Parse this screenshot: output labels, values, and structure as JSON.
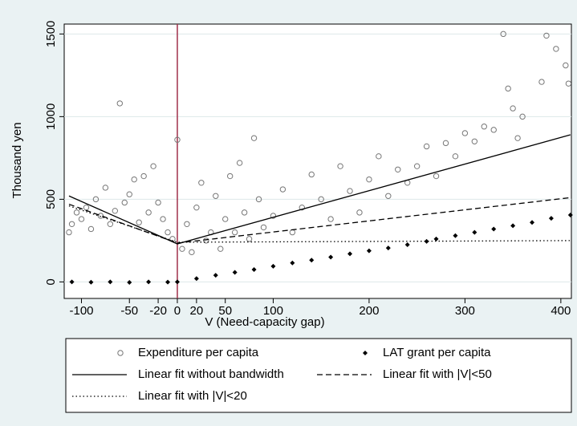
{
  "chart_data": {
    "type": "scatter",
    "xlabel": "V (Need-capacity gap)",
    "ylabel": "Thousand yen",
    "xlim": [
      -118,
      411
    ],
    "ylim": [
      -100,
      1560
    ],
    "xticks": [
      -100,
      -50,
      -20,
      0,
      20,
      50,
      100,
      200,
      300,
      400
    ],
    "yticks": [
      0,
      500,
      1000,
      1500
    ],
    "grid": true,
    "vline": 0,
    "vline_color": "#a0304a",
    "series": [
      {
        "name": "Expenditure per capita",
        "kind": "points",
        "marker": "circle",
        "color": "#777777",
        "x": [
          -113,
          -110,
          -105,
          -100,
          -95,
          -90,
          -85,
          -80,
          -75,
          -70,
          -65,
          -60,
          -55,
          -50,
          -45,
          -40,
          -35,
          -30,
          -25,
          -20,
          -15,
          -10,
          -5,
          0,
          5,
          10,
          15,
          20,
          25,
          30,
          35,
          40,
          45,
          50,
          55,
          60,
          65,
          70,
          75,
          80,
          85,
          90,
          100,
          110,
          120,
          130,
          140,
          150,
          160,
          170,
          180,
          190,
          200,
          210,
          220,
          230,
          240,
          250,
          260,
          270,
          280,
          290,
          300,
          310,
          320,
          330,
          340,
          345,
          350,
          355,
          360,
          380,
          385,
          395,
          405,
          408
        ],
        "values": [
          300,
          350,
          420,
          380,
          450,
          320,
          500,
          400,
          570,
          350,
          430,
          1080,
          480,
          530,
          620,
          360,
          640,
          420,
          700,
          480,
          380,
          300,
          260,
          860,
          200,
          350,
          180,
          450,
          600,
          250,
          300,
          520,
          200,
          380,
          640,
          300,
          720,
          420,
          260,
          870,
          500,
          330,
          400,
          560,
          300,
          450,
          650,
          500,
          380,
          700,
          550,
          420,
          620,
          760,
          520,
          680,
          600,
          700,
          820,
          640,
          840,
          760,
          900,
          850,
          940,
          920,
          1500,
          1170,
          1050,
          870,
          1000,
          1210,
          1490,
          1410,
          1310,
          1200
        ]
      },
      {
        "name": "LAT grant per capita",
        "kind": "points",
        "marker": "diamond",
        "color": "#000000",
        "x": [
          -110,
          -90,
          -70,
          -50,
          -30,
          -10,
          0,
          20,
          40,
          60,
          80,
          100,
          120,
          140,
          160,
          180,
          200,
          220,
          240,
          260,
          270,
          290,
          310,
          330,
          350,
          370,
          390,
          410
        ],
        "values": [
          0,
          -2,
          0,
          -3,
          0,
          -1,
          0,
          20,
          40,
          58,
          75,
          95,
          115,
          132,
          150,
          170,
          188,
          205,
          225,
          245,
          260,
          280,
          300,
          320,
          340,
          360,
          385,
          405
        ]
      },
      {
        "name": "Linear fit without bandwidth",
        "kind": "line",
        "dash": "solid",
        "color": "#000000",
        "x": [
          -113,
          0,
          410
        ],
        "values": [
          520,
          230,
          890
        ]
      },
      {
        "name": "Linear fit with |V|<50",
        "kind": "line",
        "dash": "dashed",
        "color": "#000000",
        "x": [
          -113,
          0,
          410
        ],
        "values": [
          470,
          235,
          510
        ]
      },
      {
        "name": "Linear fit with |V|<20",
        "kind": "line",
        "dash": "dotted",
        "color": "#000000",
        "x": [
          -113,
          0,
          410
        ],
        "values": [
          460,
          240,
          250
        ]
      }
    ]
  }
}
